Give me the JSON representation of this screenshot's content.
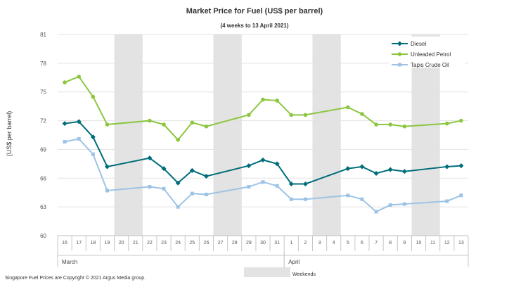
{
  "chart_data": {
    "type": "line",
    "title": "Market Price for Fuel (US$  per barrel)",
    "subtitle": "(4 weeks to 13 April 2021)",
    "ylabel": "(US$ per barrel)",
    "xlabel": "",
    "ylim": [
      60,
      81
    ],
    "yticks": [
      60,
      63,
      66,
      69,
      72,
      75,
      78,
      81
    ],
    "grid": true,
    "legend_position": "top-right",
    "categories": [
      "16",
      "17",
      "18",
      "19",
      "20",
      "21",
      "22",
      "23",
      "24",
      "25",
      "26",
      "27",
      "28",
      "29",
      "30",
      "31",
      "1",
      "2",
      "3",
      "4",
      "5",
      "6",
      "7",
      "8",
      "9",
      "10",
      "11",
      "12",
      "13"
    ],
    "month_labels": [
      {
        "label": "March",
        "start_index": 0,
        "end_index": 15
      },
      {
        "label": "April",
        "start_index": 16,
        "end_index": 28
      }
    ],
    "weekend_bands": [
      [
        4,
        5
      ],
      [
        11,
        12
      ],
      [
        18,
        19
      ],
      [
        25,
        26
      ]
    ],
    "weekend_label": "Weekends",
    "series": [
      {
        "name": "Diesel",
        "color": "#006d7a",
        "marker": "diamond",
        "values": [
          71.7,
          71.9,
          70.3,
          67.2,
          null,
          null,
          68.1,
          67.0,
          65.5,
          66.8,
          66.2,
          null,
          null,
          67.3,
          67.9,
          67.5,
          65.4,
          65.4,
          null,
          null,
          67.0,
          67.2,
          66.5,
          66.9,
          66.7,
          null,
          null,
          67.2,
          67.3
        ]
      },
      {
        "name": "Unleaded Petrol",
        "color": "#8cc63f",
        "marker": "circle",
        "values": [
          76.0,
          76.6,
          74.5,
          71.6,
          null,
          null,
          72.0,
          71.6,
          70.0,
          71.8,
          71.4,
          null,
          null,
          72.6,
          74.2,
          74.1,
          72.6,
          72.6,
          null,
          null,
          73.4,
          72.7,
          71.6,
          71.6,
          71.4,
          null,
          null,
          71.7,
          72.0
        ]
      },
      {
        "name": "Tapis Crude Oil",
        "color": "#9cc3e6",
        "marker": "square",
        "values": [
          69.8,
          70.1,
          68.5,
          64.7,
          null,
          null,
          65.1,
          64.9,
          63.0,
          64.4,
          64.3,
          null,
          null,
          65.1,
          65.6,
          65.2,
          63.8,
          63.8,
          null,
          null,
          64.2,
          63.8,
          62.5,
          63.2,
          63.3,
          null,
          null,
          63.6,
          64.2
        ]
      }
    ]
  },
  "footer": {
    "copyright": "Singapore  Fuel Prices are Copyright © 2021 Argus Media group."
  }
}
